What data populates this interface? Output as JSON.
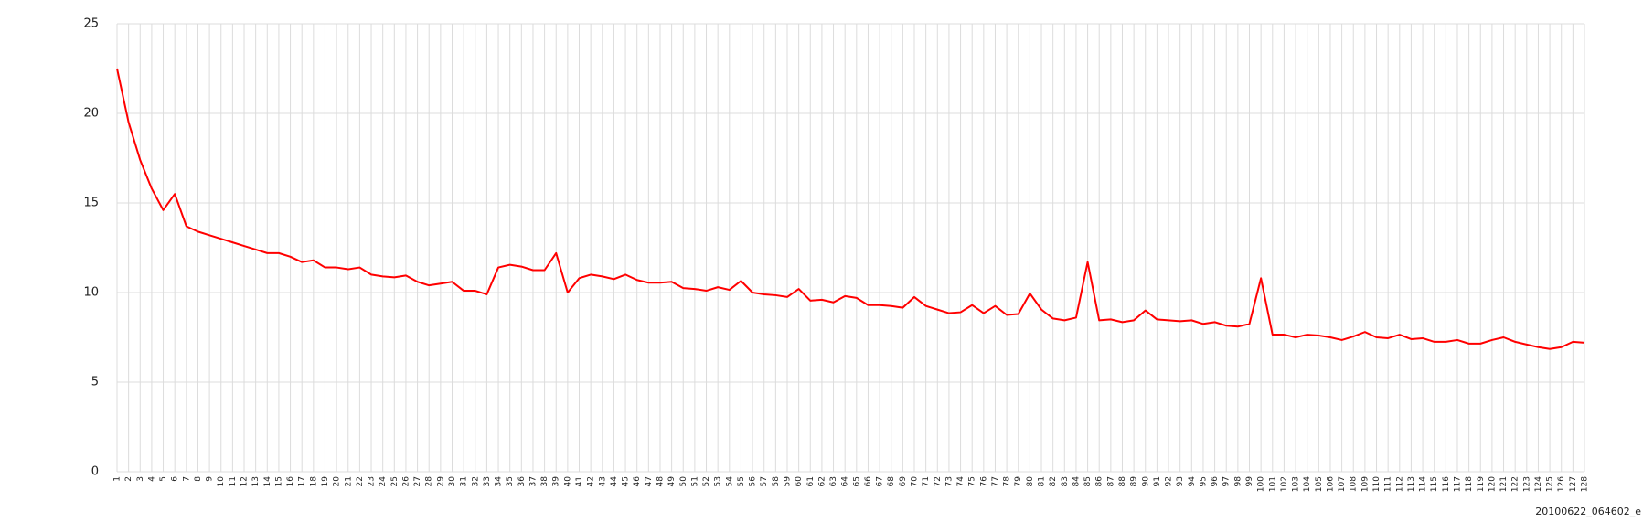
{
  "chart_data": {
    "type": "line",
    "annotation": "20100622_064602_e",
    "categories": [
      "1",
      "2",
      "3",
      "4",
      "5",
      "6",
      "7",
      "8",
      "9",
      "10",
      "11",
      "12",
      "13",
      "14",
      "15",
      "16",
      "17",
      "18",
      "19",
      "20",
      "21",
      "22",
      "23",
      "24",
      "25",
      "26",
      "27",
      "28",
      "29",
      "30",
      "31",
      "32",
      "33",
      "34",
      "35",
      "36",
      "37",
      "38",
      "39",
      "40",
      "41",
      "42",
      "43",
      "44",
      "45",
      "46",
      "47",
      "48",
      "49",
      "50",
      "51",
      "52",
      "53",
      "54",
      "55",
      "56",
      "57",
      "58",
      "59",
      "60",
      "61",
      "62",
      "63",
      "64",
      "65",
      "66",
      "67",
      "68",
      "69",
      "70",
      "71",
      "72",
      "73",
      "74",
      "75",
      "76",
      "77",
      "78",
      "79",
      "80",
      "81",
      "82",
      "83",
      "84",
      "85",
      "86",
      "87",
      "88",
      "89",
      "90",
      "91",
      "92",
      "93",
      "94",
      "95",
      "96",
      "97",
      "98",
      "99",
      "100",
      "101",
      "102",
      "103",
      "104",
      "105",
      "106",
      "107",
      "108",
      "109",
      "110",
      "111",
      "112",
      "113",
      "114",
      "115",
      "116",
      "117",
      "118",
      "119",
      "120",
      "121",
      "122",
      "123",
      "124",
      "125",
      "126",
      "127",
      "128"
    ],
    "values": [
      22.5,
      19.5,
      17.4,
      15.8,
      14.6,
      15.5,
      13.7,
      13.4,
      13.2,
      13.0,
      12.8,
      12.6,
      12.4,
      12.2,
      12.2,
      12.0,
      11.7,
      11.8,
      11.4,
      11.4,
      11.3,
      11.4,
      11.0,
      10.9,
      10.85,
      10.95,
      10.6,
      10.4,
      10.5,
      10.6,
      10.1,
      10.1,
      9.9,
      11.4,
      11.55,
      11.45,
      11.25,
      11.25,
      12.2,
      10.0,
      10.8,
      11.0,
      10.9,
      10.75,
      11.0,
      10.7,
      10.55,
      10.55,
      10.6,
      10.25,
      10.2,
      10.1,
      10.3,
      10.15,
      10.65,
      10.0,
      9.9,
      9.85,
      9.75,
      10.2,
      9.55,
      9.6,
      9.45,
      9.8,
      9.7,
      9.3,
      9.3,
      9.25,
      9.15,
      9.75,
      9.25,
      9.05,
      8.85,
      8.9,
      9.3,
      8.85,
      9.25,
      8.75,
      8.8,
      9.95,
      9.05,
      8.55,
      8.45,
      8.6,
      11.7,
      8.45,
      8.5,
      8.35,
      8.45,
      9.0,
      8.5,
      8.45,
      8.4,
      8.45,
      8.25,
      8.35,
      8.15,
      8.1,
      8.25,
      10.8,
      7.65,
      7.65,
      7.5,
      7.65,
      7.6,
      7.5,
      7.35,
      7.55,
      7.8,
      7.5,
      7.45,
      7.65,
      7.4,
      7.45,
      7.25,
      7.25,
      7.35,
      7.15,
      7.15,
      7.35,
      7.5,
      7.25,
      7.1,
      6.95,
      6.85,
      6.95,
      7.25,
      7.2
    ],
    "color": "#ff0000",
    "ylim": [
      0,
      25
    ],
    "yticks": [
      0,
      5,
      10,
      15,
      20,
      25
    ],
    "grid": true
  }
}
